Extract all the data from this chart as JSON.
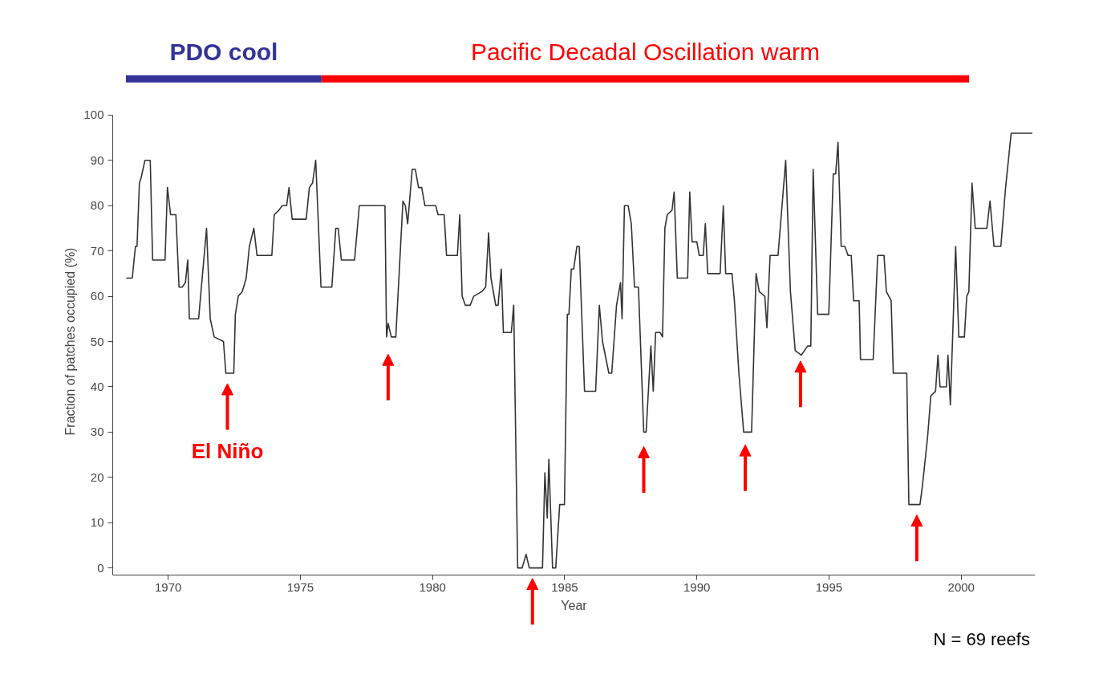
{
  "chart_data": {
    "type": "line",
    "xlabel": "Year",
    "ylabel": "Fraction of patches occupied (%)",
    "xlim": [
      1967.9,
      2002.8
    ],
    "ylim": [
      -1.5,
      100
    ],
    "xticks": [
      1970,
      1975,
      1980,
      1985,
      1990,
      1995,
      2000
    ],
    "yticks": [
      0,
      10,
      20,
      30,
      40,
      50,
      60,
      70,
      80,
      90,
      100
    ],
    "grid": false,
    "marker": "none",
    "line_style": "solid",
    "annotations": [
      "PDO cool",
      "Pacific Decadal Oscillation warm",
      "El Niño",
      "N = 69 reefs"
    ],
    "series": [
      {
        "color": "#333333",
        "x": [
          1968.41,
          1968.64,
          1968.76,
          1968.82,
          1968.91,
          1968.97,
          1969.12,
          1969.32,
          1969.41,
          1969.88,
          1969.97,
          1970.09,
          1970.29,
          1970.41,
          1970.53,
          1970.65,
          1970.74,
          1970.8,
          1971.15,
          1971.45,
          1971.59,
          1971.74,
          1972.09,
          1972.18,
          1972.48,
          1972.54,
          1972.65,
          1972.8,
          1972.95,
          1973.07,
          1973.24,
          1973.36,
          1973.92,
          1974.01,
          1974.19,
          1974.31,
          1974.48,
          1974.57,
          1974.69,
          1975.22,
          1975.34,
          1975.46,
          1975.58,
          1975.78,
          1976.19,
          1976.34,
          1976.43,
          1976.55,
          1977.05,
          1977.23,
          1978.2,
          1978.26,
          1978.32,
          1978.44,
          1978.61,
          1978.88,
          1978.97,
          1979.06,
          1979.23,
          1979.35,
          1979.47,
          1979.59,
          1979.71,
          1980.12,
          1980.21,
          1980.44,
          1980.53,
          1980.94,
          1981.03,
          1981.12,
          1981.24,
          1981.42,
          1981.56,
          1981.86,
          1982.01,
          1982.12,
          1982.21,
          1982.39,
          1982.48,
          1982.6,
          1982.68,
          1982.98,
          1983.07,
          1983.22,
          1983.39,
          1983.54,
          1983.66,
          1984.16,
          1984.25,
          1984.34,
          1984.4,
          1984.54,
          1984.66,
          1984.81,
          1984.99,
          1985.1,
          1985.16,
          1985.25,
          1985.34,
          1985.46,
          1985.55,
          1985.75,
          1986.17,
          1986.31,
          1986.43,
          1986.67,
          1986.78,
          1986.96,
          1987.11,
          1987.17,
          1987.26,
          1987.4,
          1987.52,
          1987.64,
          1987.79,
          1987.99,
          1988.08,
          1988.26,
          1988.35,
          1988.44,
          1988.61,
          1988.7,
          1988.79,
          1988.88,
          1989.06,
          1989.14,
          1989.26,
          1989.65,
          1989.73,
          1989.82,
          1990.0,
          1990.09,
          1990.24,
          1990.32,
          1990.41,
          1990.88,
          1991.0,
          1991.09,
          1991.33,
          1991.42,
          1991.59,
          1991.77,
          1992.07,
          1992.24,
          1992.36,
          1992.57,
          1992.65,
          1992.77,
          1993.07,
          1993.36,
          1993.54,
          1993.72,
          1993.95,
          1994.19,
          1994.31,
          1994.4,
          1994.57,
          1994.99,
          1995.16,
          1995.25,
          1995.34,
          1995.46,
          1995.6,
          1995.72,
          1995.84,
          1995.93,
          1996.14,
          1996.19,
          1996.67,
          1996.84,
          1997.08,
          1997.17,
          1997.35,
          1997.43,
          1997.94,
          1998.02,
          1998.44,
          1998.53,
          1998.73,
          1998.85,
          1999.03,
          1999.12,
          1999.2,
          1999.44,
          1999.5,
          1999.59,
          1999.79,
          1999.91,
          2000.12,
          2000.21,
          2000.29,
          2000.41,
          2000.53,
          2000.97,
          2001.09,
          2001.24,
          2001.5,
          2001.68,
          2001.89,
          2002.69
        ],
        "values": [
          64,
          64,
          71,
          71,
          85,
          86,
          90,
          90,
          68,
          68,
          84,
          78,
          78,
          62,
          62,
          63,
          68,
          55,
          55,
          75,
          55,
          51,
          50,
          43,
          43,
          56,
          60,
          61,
          64,
          71,
          75,
          69,
          69,
          78,
          79,
          80,
          80,
          84,
          77,
          77,
          84,
          85,
          90,
          62,
          62,
          75,
          75,
          68,
          68,
          80,
          80,
          51,
          54,
          51,
          51,
          81,
          80,
          76,
          88,
          88,
          84,
          84,
          80,
          80,
          78,
          78,
          69,
          69,
          78,
          60,
          58,
          58,
          60,
          61,
          62,
          74,
          64,
          58,
          58,
          66,
          52,
          52,
          58,
          0,
          0,
          3,
          0,
          0,
          21,
          11,
          24,
          0,
          0,
          14,
          14,
          56,
          56,
          66,
          66,
          71,
          71,
          39,
          39,
          58,
          50,
          43,
          43,
          58,
          63,
          55,
          80,
          80,
          76,
          62,
          62,
          30,
          30,
          49,
          39,
          52,
          52,
          51,
          75,
          78,
          79,
          83,
          64,
          64,
          83,
          72,
          72,
          69,
          69,
          76,
          65,
          65,
          80,
          65,
          65,
          59,
          43,
          30,
          30,
          65,
          61,
          60,
          53,
          69,
          69,
          90,
          61,
          48,
          47,
          49,
          49,
          88,
          56,
          56,
          87,
          87,
          94,
          71,
          71,
          69,
          69,
          59,
          59,
          46,
          46,
          69,
          69,
          61,
          59,
          43,
          43,
          14,
          14,
          18,
          29,
          38,
          39,
          47,
          40,
          40,
          47,
          36,
          71,
          51,
          51,
          60,
          61,
          85,
          75,
          75,
          81,
          71,
          71,
          84,
          96,
          96
        ]
      }
    ]
  }
}
